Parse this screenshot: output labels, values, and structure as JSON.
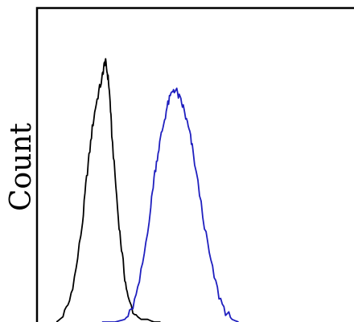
{
  "chart_data": {
    "type": "line",
    "title": "",
    "xlabel": "",
    "ylabel": "Count",
    "xlim": [
      0,
      100
    ],
    "ylim": [
      0,
      100
    ],
    "grid": false,
    "legend": "none",
    "series": [
      {
        "color": "#000000",
        "x": [
          6,
          8,
          10,
          12,
          14,
          15,
          16,
          17,
          18,
          19,
          20,
          20.5,
          21,
          21.5,
          22,
          22.5,
          23,
          24,
          25,
          26,
          27,
          28,
          30,
          32,
          34,
          36,
          38
        ],
        "y": [
          0,
          2,
          8,
          20,
          38,
          52,
          63,
          74,
          82,
          88,
          93,
          97,
          100,
          96,
          92,
          84,
          72,
          56,
          40,
          28,
          17,
          9,
          3,
          1,
          1,
          0,
          0
        ]
      },
      {
        "color": "#1f1fbf",
        "x": [
          20,
          24,
          27,
          29,
          31,
          33,
          35,
          36,
          37,
          38,
          39,
          40,
          41,
          42,
          43,
          44,
          45,
          46,
          47,
          48,
          50,
          52,
          54,
          56,
          58,
          60,
          62
        ],
        "y": [
          0,
          0,
          1,
          4,
          12,
          26,
          44,
          55,
          63,
          70,
          76,
          82,
          86,
          89,
          88,
          85,
          82,
          77,
          72,
          65,
          49,
          33,
          20,
          10,
          4,
          1,
          0
        ]
      }
    ]
  }
}
